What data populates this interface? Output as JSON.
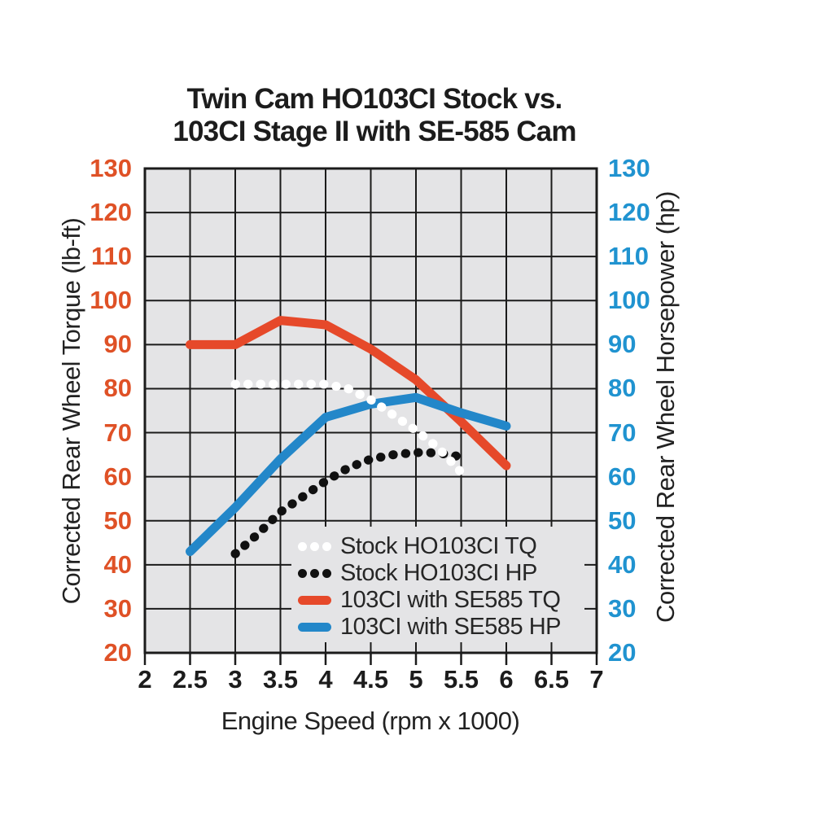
{
  "title": {
    "line1": "Twin Cam HO103CI Stock vs.",
    "line2": "103CI Stage II with SE-585 Cam"
  },
  "chart_data": {
    "type": "line",
    "title": "Twin Cam HO103CI Stock vs. 103CI Stage II with SE-585 Cam",
    "plot_background": "#e4e4e6",
    "gridline_color": "#1b1b1b",
    "grid": true,
    "x_axis": {
      "label": "Engine Speed (rpm x 1000)",
      "min": 2,
      "max": 7,
      "ticks": [
        2,
        2.5,
        3,
        3.5,
        4,
        4.5,
        5,
        5.5,
        6,
        6.5,
        7
      ],
      "tick_color": "#1c1c1c"
    },
    "y_axis_left": {
      "label": "Corrected Rear Wheel Torque (lb-ft)",
      "units": "lb-ft",
      "min": 20,
      "max": 130,
      "ticks": [
        20,
        30,
        40,
        50,
        60,
        70,
        80,
        90,
        100,
        110,
        120,
        130
      ],
      "tick_color": "#df5126"
    },
    "y_axis_right": {
      "label": "Corrected Rear Wheel Horsepower (hp)",
      "units": "hp",
      "min": 20,
      "max": 130,
      "ticks": [
        20,
        30,
        40,
        50,
        60,
        70,
        80,
        90,
        100,
        110,
        120,
        130
      ],
      "tick_color": "#2093d0"
    },
    "legend": {
      "position": "inside-bottom-right"
    },
    "series": [
      {
        "name": "Stock HO103CI TQ",
        "style": "dotted",
        "color": "#ffffff",
        "axis": "torque (lb-ft)",
        "points": [
          [
            3,
            81
          ],
          [
            3.5,
            81
          ],
          [
            4,
            81
          ],
          [
            4.25,
            80
          ],
          [
            4.5,
            77.5
          ],
          [
            4.75,
            74
          ],
          [
            5,
            70.5
          ],
          [
            5.25,
            66.5
          ],
          [
            5.5,
            61
          ]
        ]
      },
      {
        "name": "Stock HO103CI HP",
        "style": "dotted",
        "color": "#111111",
        "axis": "horsepower (hp)",
        "points": [
          [
            3,
            42.5
          ],
          [
            3.25,
            47
          ],
          [
            3.5,
            52
          ],
          [
            3.75,
            55.5
          ],
          [
            4,
            59
          ],
          [
            4.25,
            62
          ],
          [
            4.5,
            64
          ],
          [
            4.75,
            65
          ],
          [
            5,
            65.5
          ],
          [
            5.25,
            65.4
          ],
          [
            5.5,
            64.5
          ]
        ]
      },
      {
        "name": "103CI with SE585 TQ",
        "style": "solid",
        "color": "#e6492a",
        "axis": "torque (lb-ft)",
        "points": [
          [
            2.5,
            90
          ],
          [
            3,
            90
          ],
          [
            3.5,
            95.5
          ],
          [
            4,
            94.5
          ],
          [
            4.5,
            89
          ],
          [
            5,
            82
          ],
          [
            5.5,
            72.5
          ],
          [
            6,
            62.5
          ]
        ]
      },
      {
        "name": "103CI with SE585 HP",
        "style": "solid",
        "color": "#2387c9",
        "axis": "horsepower (hp)",
        "points": [
          [
            2.5,
            43
          ],
          [
            3,
            53
          ],
          [
            3.5,
            64
          ],
          [
            4,
            73.5
          ],
          [
            4.5,
            76.5
          ],
          [
            5,
            78
          ],
          [
            5.5,
            74.5
          ],
          [
            6,
            71.5
          ]
        ]
      }
    ]
  }
}
